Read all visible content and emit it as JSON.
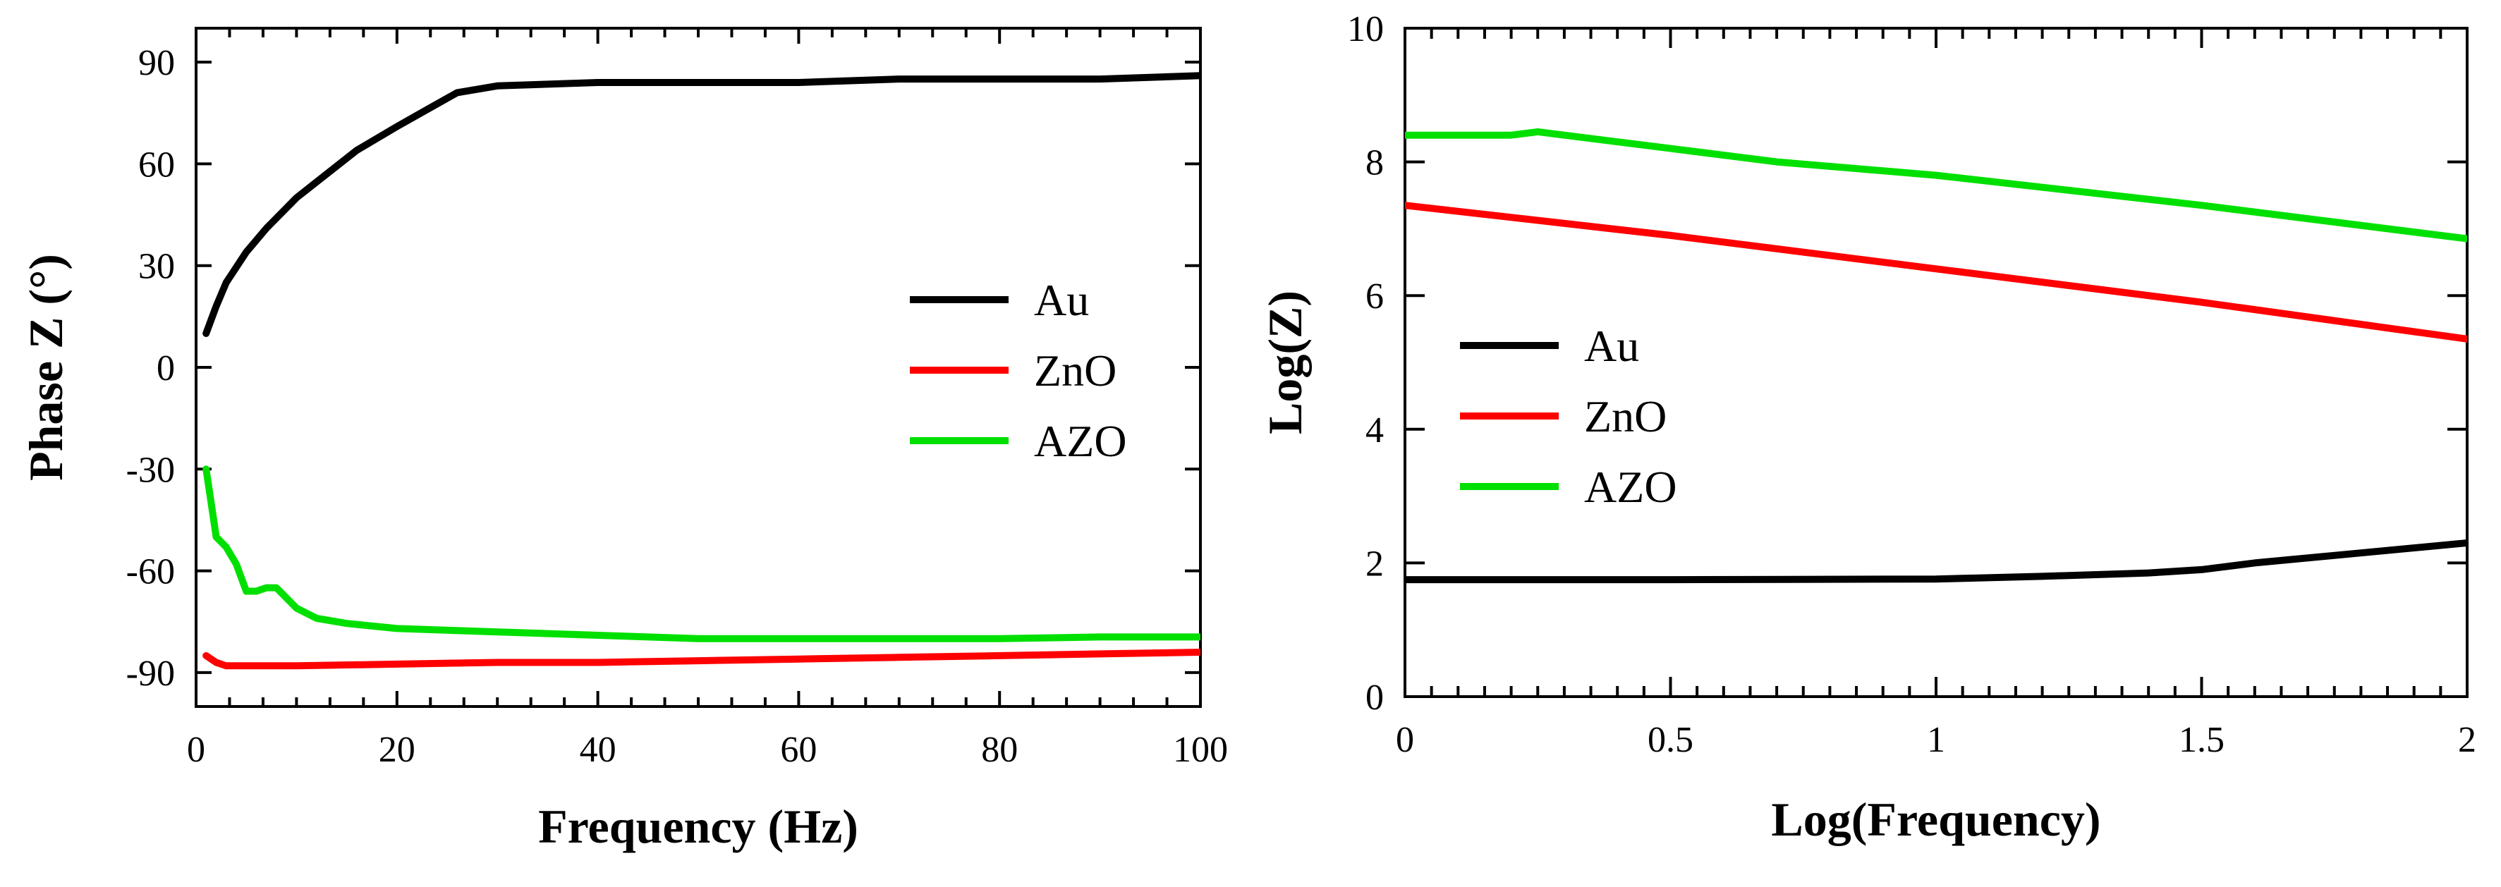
{
  "chart_data": [
    {
      "type": "line",
      "title": "",
      "xlabel": "Frequency (Hz)",
      "ylabel": "Phase Z (°)",
      "xlim": [
        0,
        100
      ],
      "ylim": [
        -100,
        100
      ],
      "xticks": [
        0,
        20,
        40,
        60,
        80,
        100
      ],
      "xtick_labels": [
        "0",
        "20",
        "40",
        "60",
        "80",
        "100"
      ],
      "yticks": [
        -90,
        -60,
        -30,
        0,
        30,
        60,
        90
      ],
      "ytick_labels": [
        "-90",
        "-60",
        "-30",
        "0",
        "30",
        "60",
        "90"
      ],
      "grid": false,
      "legend": "center-right",
      "series": [
        {
          "name": "Au",
          "color": "#000000",
          "x": [
            1,
            2,
            3,
            5,
            7,
            10,
            13,
            16,
            20,
            23,
            26,
            30,
            40,
            50,
            60,
            70,
            80,
            90,
            100
          ],
          "y": [
            10,
            18,
            25,
            34,
            41,
            50,
            57,
            64,
            71,
            76,
            81,
            83,
            84,
            84,
            84,
            85,
            85,
            85,
            86
          ]
        },
        {
          "name": "ZnO",
          "color": "#ff0000",
          "x": [
            1,
            2,
            3,
            10,
            20,
            30,
            40,
            50,
            60,
            70,
            80,
            90,
            100
          ],
          "y": [
            -85,
            -87,
            -88,
            -88,
            -87.5,
            -87,
            -87,
            -86.5,
            -86,
            -85.5,
            -85,
            -84.5,
            -84
          ]
        },
        {
          "name": "AZO",
          "color": "#00e000",
          "x": [
            1,
            1.5,
            2,
            3,
            4,
            5,
            6,
            7,
            8,
            10,
            12,
            15,
            20,
            30,
            40,
            50,
            60,
            70,
            80,
            90,
            100
          ],
          "y": [
            -30,
            -40,
            -50,
            -53,
            -58,
            -66,
            -66,
            -65,
            -65,
            -71,
            -74,
            -75.5,
            -77,
            -78,
            -79,
            -80,
            -80,
            -80,
            -80,
            -79.5,
            -79.5
          ]
        }
      ]
    },
    {
      "type": "line",
      "title": "",
      "xlabel": "Log(Frequency)",
      "ylabel": "Log(Z)",
      "xlim": [
        0,
        2
      ],
      "ylim": [
        0,
        10
      ],
      "xticks": [
        0,
        0.5,
        1,
        1.5,
        2
      ],
      "xtick_labels": [
        "0",
        "0.5",
        "1",
        "1.5",
        "2"
      ],
      "yticks": [
        0,
        2,
        4,
        6,
        8,
        10
      ],
      "ytick_labels": [
        "0",
        "2",
        "4",
        "6",
        "8",
        "10"
      ],
      "grid": false,
      "legend": "center-left",
      "series": [
        {
          "name": "Au",
          "color": "#000000",
          "x": [
            0,
            0.5,
            1,
            1.2,
            1.4,
            1.5,
            1.6,
            1.8,
            2
          ],
          "y": [
            1.75,
            1.75,
            1.76,
            1.8,
            1.85,
            1.9,
            2.0,
            2.15,
            2.3
          ]
        },
        {
          "name": "ZnO",
          "color": "#ff0000",
          "x": [
            0,
            0.5,
            1,
            1.5,
            2
          ],
          "y": [
            7.35,
            6.9,
            6.4,
            5.9,
            5.35
          ]
        },
        {
          "name": "AZO",
          "color": "#00e000",
          "x": [
            0,
            0.2,
            0.25,
            0.3,
            0.5,
            0.7,
            1,
            1.5,
            2
          ],
          "y": [
            8.4,
            8.4,
            8.45,
            8.4,
            8.2,
            8.0,
            7.8,
            7.35,
            6.85
          ]
        }
      ]
    }
  ]
}
